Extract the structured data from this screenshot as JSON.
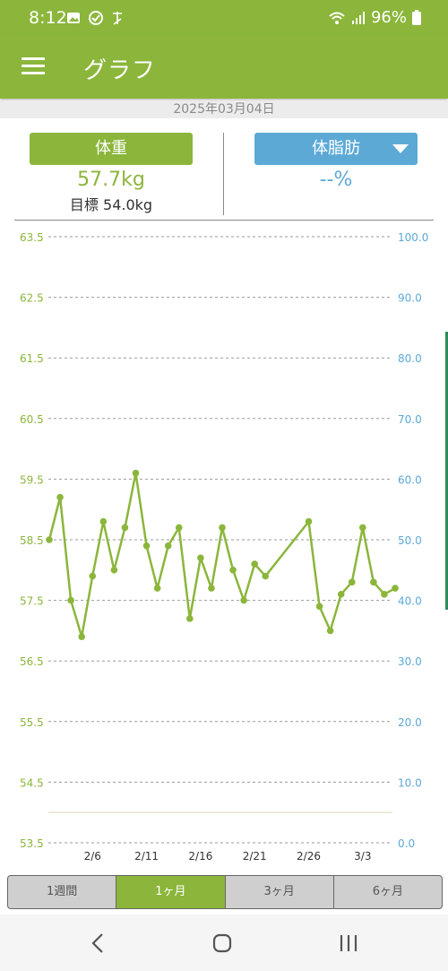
{
  "status": {
    "time": "8:12",
    "battery": "96%"
  },
  "appbar": {
    "title": "グラフ"
  },
  "date": "2025年03月04日",
  "weight": {
    "label": "体重",
    "value": "57.7kg",
    "target": "目標 54.0kg"
  },
  "bodyfat": {
    "label": "体脂肪",
    "value": "--%"
  },
  "colors": {
    "green": "#8bb63b",
    "blue": "#5ca9d6"
  },
  "ranges": [
    {
      "label": "1週間",
      "active": false
    },
    {
      "label": "1ヶ月",
      "active": true
    },
    {
      "label": "3ヶ月",
      "active": false
    },
    {
      "label": "6ヶ月",
      "active": false
    }
  ],
  "chart_data": {
    "type": "line",
    "left_axis": {
      "min": 53.5,
      "max": 63.5,
      "ticks": [
        "63.5",
        "62.5",
        "61.5",
        "60.5",
        "59.5",
        "58.5",
        "57.5",
        "56.5",
        "55.5",
        "54.5",
        "53.5"
      ]
    },
    "right_axis": {
      "min": 0,
      "max": 100,
      "ticks": [
        "100.0",
        "90.0",
        "80.0",
        "70.0",
        "60.0",
        "50.0",
        "40.0",
        "30.0",
        "20.0",
        "10.0",
        "0.0"
      ]
    },
    "x_ticks": [
      {
        "label": "2/6",
        "day": 6
      },
      {
        "label": "2/11",
        "day": 11
      },
      {
        "label": "2/16",
        "day": 16
      },
      {
        "label": "2/21",
        "day": 21
      },
      {
        "label": "2/26",
        "day": 26
      },
      {
        "label": "3/3",
        "day": 31
      }
    ],
    "target_value": 54.0,
    "series": [
      {
        "values": [
          [
            2,
            58.5
          ],
          [
            3,
            59.2
          ],
          [
            4,
            57.5
          ],
          [
            5,
            56.9
          ],
          [
            6,
            57.9
          ],
          [
            7,
            58.8
          ],
          [
            8,
            58.0
          ],
          [
            9,
            58.7
          ],
          [
            10,
            59.6
          ],
          [
            11,
            58.4
          ],
          [
            12,
            57.7
          ],
          [
            13,
            58.4
          ],
          [
            14,
            58.7
          ],
          [
            15,
            57.2
          ],
          [
            16,
            58.2
          ],
          [
            17,
            57.7
          ],
          [
            18,
            58.7
          ],
          [
            19,
            58.0
          ],
          [
            20,
            57.5
          ],
          [
            21,
            58.1
          ],
          [
            22,
            57.9
          ],
          [
            26,
            58.8
          ],
          [
            27,
            57.4
          ],
          [
            28,
            57.0
          ],
          [
            29,
            57.6
          ],
          [
            30,
            57.8
          ],
          [
            31,
            58.7
          ],
          [
            32,
            57.8
          ],
          [
            33,
            57.6
          ],
          [
            34,
            57.7
          ]
        ]
      }
    ]
  }
}
